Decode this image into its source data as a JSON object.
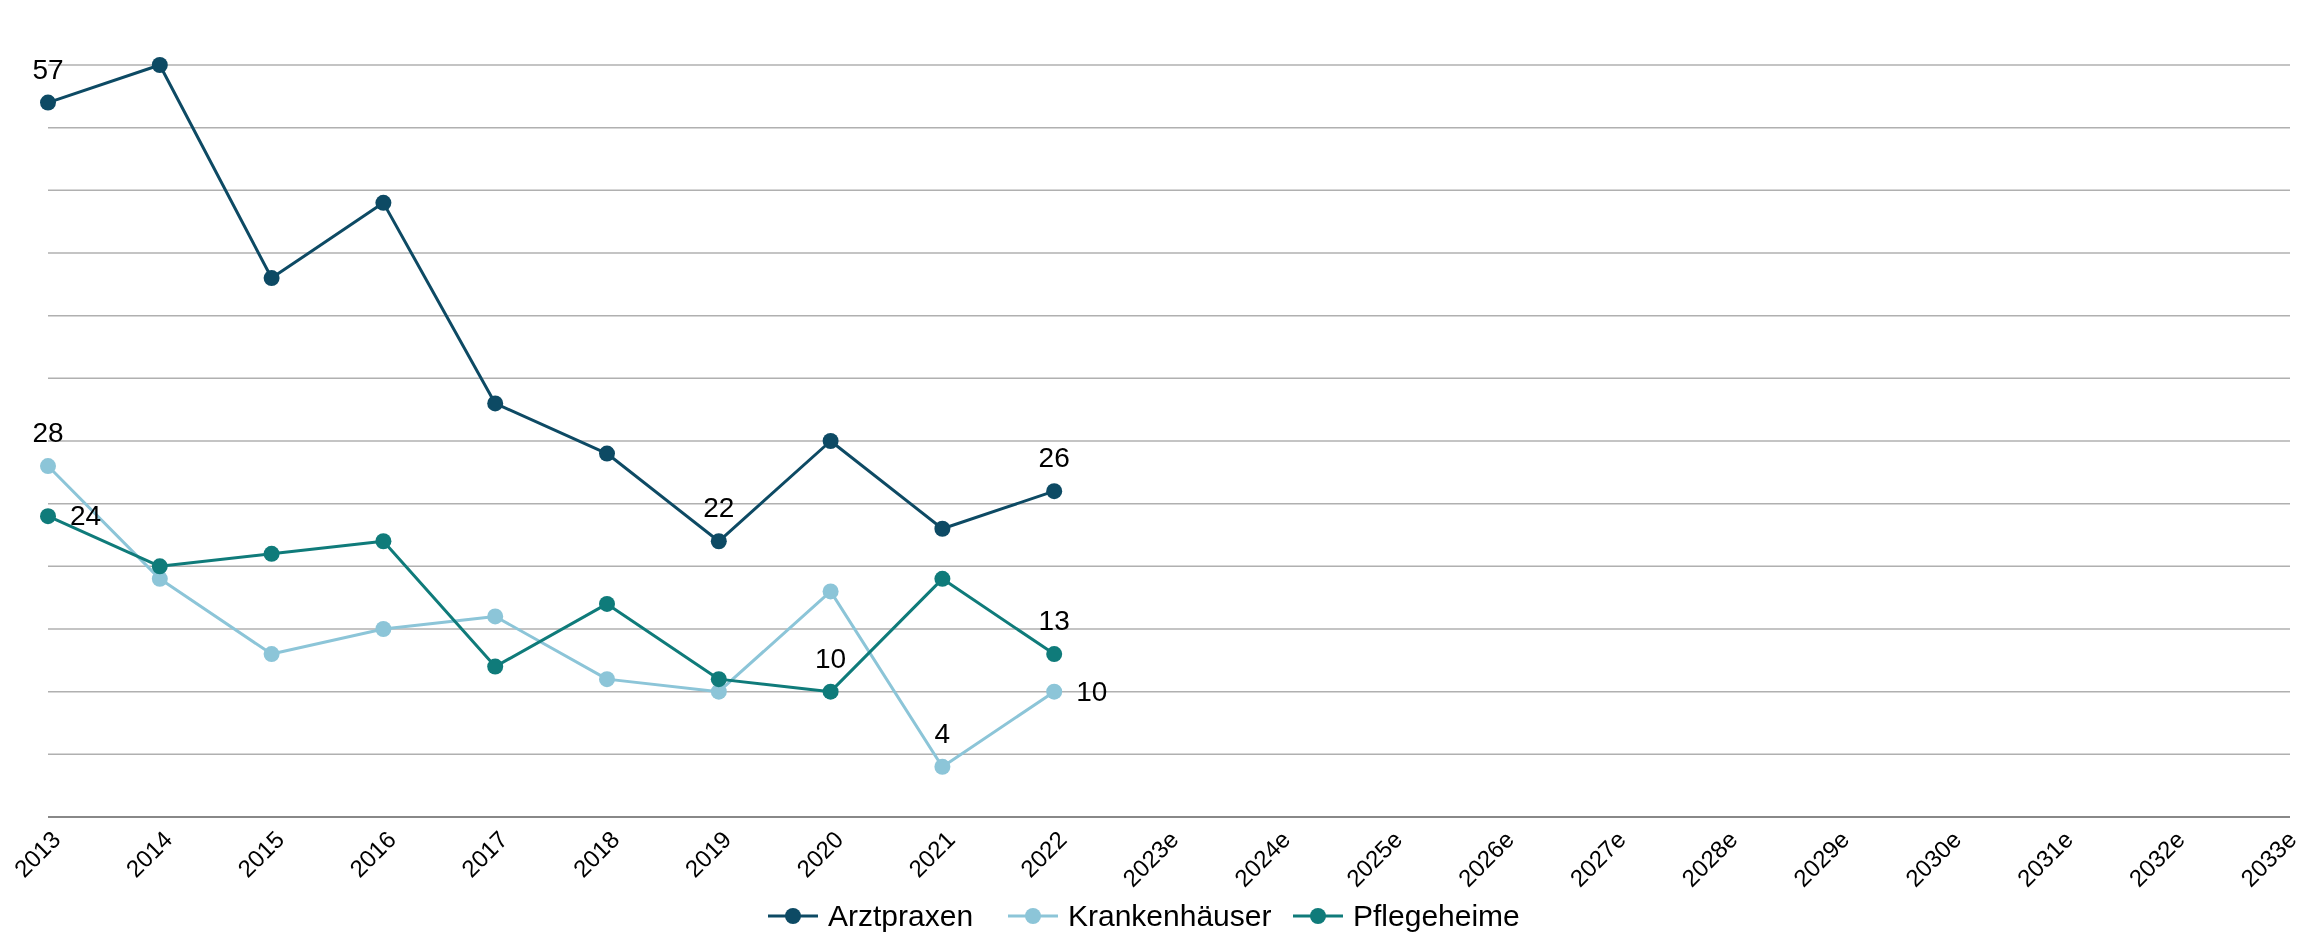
{
  "chart_data": {
    "type": "line",
    "categories": [
      "2013",
      "2014",
      "2015",
      "2016",
      "2017",
      "2018",
      "2019",
      "2020",
      "2021",
      "2022",
      "2023e",
      "2024e",
      "2025e",
      "2026e",
      "2027e",
      "2028e",
      "2029e",
      "2030e",
      "2031e",
      "2032e",
      "2033e"
    ],
    "ylim": [
      0,
      60
    ],
    "yticks": [
      {
        "value": 0,
        "label": null
      },
      {
        "value": 5,
        "label": null
      },
      {
        "value": 10,
        "label": null
      },
      {
        "value": 15,
        "label": null
      },
      {
        "value": 20,
        "label": null
      },
      {
        "value": 25,
        "label": null
      },
      {
        "value": 30,
        "label": null
      },
      {
        "value": 35,
        "label": null
      },
      {
        "value": 40,
        "label": null
      },
      {
        "value": 45,
        "label": null
      },
      {
        "value": 50,
        "label": null
      },
      {
        "value": 55,
        "label": null
      },
      {
        "value": 60,
        "label": null
      }
    ],
    "grid": "y",
    "legend": "bottom",
    "marker": "circle",
    "tick_labels": "x",
    "series": [
      {
        "name": "Arztpraxen",
        "color": "#0d4a64",
        "values": [
          57,
          60,
          43,
          49,
          33,
          29,
          22,
          30,
          23,
          26,
          null,
          null,
          null,
          null,
          null,
          null,
          null,
          null,
          null,
          null,
          null
        ],
        "value_labels": [
          "57",
          null,
          null,
          null,
          null,
          null,
          "22",
          null,
          null,
          "26",
          null,
          null,
          null,
          null,
          null,
          null,
          null,
          null,
          null,
          null,
          null
        ]
      },
      {
        "name": "Krankenhäuser",
        "color": "#8cc5d8",
        "values": [
          28,
          19,
          13,
          15,
          16,
          11,
          10,
          18,
          4,
          10,
          null,
          null,
          null,
          null,
          null,
          null,
          null,
          null,
          null,
          null,
          null
        ],
        "value_labels": [
          "28",
          null,
          null,
          null,
          null,
          null,
          null,
          null,
          "4",
          "10",
          null,
          null,
          null,
          null,
          null,
          null,
          null,
          null,
          null,
          null,
          null
        ]
      },
      {
        "name": "Pflegeheime",
        "color": "#0f7b7a",
        "values": [
          24,
          20,
          21,
          22,
          12,
          17,
          11,
          10,
          19,
          13,
          null,
          null,
          null,
          null,
          null,
          null,
          null,
          null,
          null,
          null,
          null
        ],
        "value_labels": [
          "24",
          null,
          null,
          null,
          null,
          null,
          null,
          "10",
          null,
          "13",
          null,
          null,
          null,
          null,
          null,
          null,
          null,
          null,
          null,
          null,
          null
        ]
      }
    ]
  }
}
